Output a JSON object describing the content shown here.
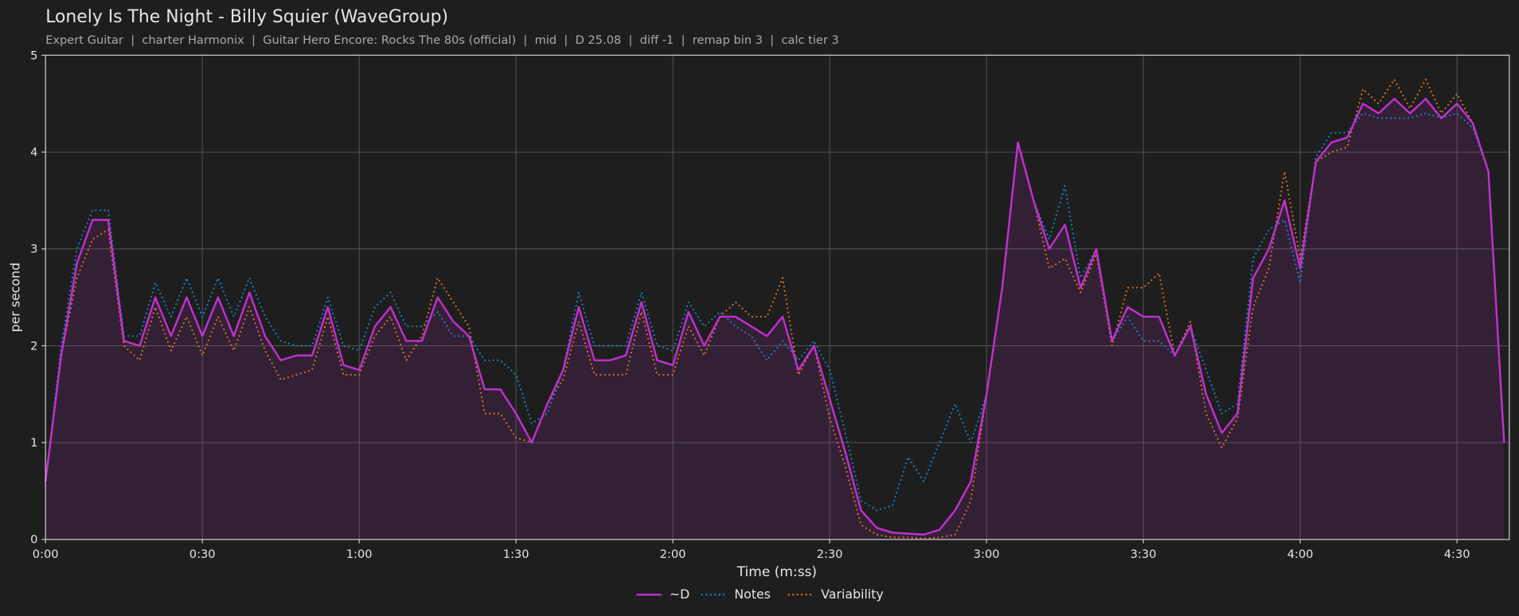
{
  "chart_data": {
    "type": "line",
    "title": "Lonely Is The Night - Billy Squier (WaveGroup)",
    "subtitle": "Expert Guitar  |  charter Harmonix  |  Guitar Hero Encore: Rocks The 80s (official)  |  mid  |  D 25.08  |  diff -1  |  remap bin 3  |  calc tier 3",
    "x_label": "Time (m:ss)",
    "y_label": "per second",
    "xlim": [
      0,
      280
    ],
    "ylim": [
      0,
      5
    ],
    "xticks": [
      {
        "value": 0,
        "label": "0:00"
      },
      {
        "value": 30,
        "label": "0:30"
      },
      {
        "value": 60,
        "label": "1:00"
      },
      {
        "value": 90,
        "label": "1:30"
      },
      {
        "value": 120,
        "label": "2:00"
      },
      {
        "value": 150,
        "label": "2:30"
      },
      {
        "value": 180,
        "label": "3:00"
      },
      {
        "value": 210,
        "label": "3:30"
      },
      {
        "value": 240,
        "label": "4:00"
      },
      {
        "value": 270,
        "label": "4:30"
      }
    ],
    "yticks": [
      0,
      1,
      2,
      3,
      4,
      5
    ],
    "grid": true,
    "legend": "bottom",
    "x": [
      0,
      3,
      6,
      9,
      12,
      15,
      18,
      21,
      24,
      27,
      30,
      33,
      36,
      39,
      42,
      45,
      48,
      51,
      54,
      57,
      60,
      63,
      66,
      69,
      72,
      75,
      78,
      81,
      84,
      87,
      90,
      93,
      96,
      99,
      102,
      105,
      108,
      111,
      114,
      117,
      120,
      123,
      126,
      129,
      132,
      135,
      138,
      141,
      144,
      147,
      150,
      153,
      156,
      159,
      162,
      165,
      168,
      171,
      174,
      177,
      180,
      183,
      186,
      189,
      192,
      195,
      198,
      201,
      204,
      207,
      210,
      213,
      216,
      219,
      222,
      225,
      228,
      231,
      234,
      237,
      240,
      243,
      246,
      249,
      252,
      255,
      258,
      261,
      264,
      267,
      270,
      273,
      276,
      279
    ],
    "series": [
      {
        "name": "~D",
        "color": "#c22fd0",
        "dash": "solid",
        "fill": true,
        "values": [
          0.6,
          1.9,
          2.85,
          3.3,
          3.3,
          2.05,
          2.0,
          2.5,
          2.1,
          2.5,
          2.1,
          2.5,
          2.1,
          2.55,
          2.1,
          1.85,
          1.9,
          1.9,
          2.4,
          1.8,
          1.75,
          2.2,
          2.4,
          2.05,
          2.05,
          2.5,
          2.25,
          2.1,
          1.55,
          1.55,
          1.3,
          1.0,
          1.4,
          1.75,
          2.4,
          1.85,
          1.85,
          1.9,
          2.45,
          1.85,
          1.8,
          2.35,
          2.0,
          2.3,
          2.3,
          2.2,
          2.1,
          2.3,
          1.75,
          2.0,
          1.45,
          0.9,
          0.3,
          0.12,
          0.07,
          0.06,
          0.05,
          0.1,
          0.3,
          0.6,
          1.5,
          2.6,
          4.1,
          3.5,
          3.0,
          3.25,
          2.6,
          3.0,
          2.05,
          2.4,
          2.3,
          2.3,
          1.9,
          2.2,
          1.5,
          1.1,
          1.3,
          2.7,
          3.0,
          3.5,
          2.8,
          3.9,
          4.1,
          4.15,
          4.5,
          4.4,
          4.55,
          4.4,
          4.55,
          4.35,
          4.5,
          4.3,
          3.8,
          1.0
        ]
      },
      {
        "name": "Notes",
        "color": "#1f86c9",
        "dash": "dotted",
        "fill": false,
        "values": [
          0.6,
          2.0,
          3.0,
          3.4,
          3.4,
          2.1,
          2.1,
          2.65,
          2.3,
          2.7,
          2.3,
          2.7,
          2.3,
          2.7,
          2.3,
          2.05,
          2.0,
          2.0,
          2.5,
          2.0,
          1.95,
          2.4,
          2.55,
          2.2,
          2.2,
          2.35,
          2.1,
          2.1,
          1.85,
          1.85,
          1.7,
          1.2,
          1.3,
          1.75,
          2.55,
          2.0,
          2.0,
          2.0,
          2.55,
          2.0,
          1.95,
          2.45,
          2.2,
          2.35,
          2.2,
          2.1,
          1.85,
          2.05,
          1.85,
          2.05,
          1.75,
          1.1,
          0.4,
          0.3,
          0.35,
          0.85,
          0.6,
          1.0,
          1.4,
          1.0,
          1.5,
          2.6,
          4.1,
          3.5,
          3.1,
          3.65,
          2.7,
          3.0,
          2.05,
          2.3,
          2.05,
          2.05,
          1.9,
          2.2,
          1.75,
          1.3,
          1.4,
          2.9,
          3.2,
          3.3,
          2.65,
          3.95,
          4.2,
          4.2,
          4.4,
          4.35,
          4.35,
          4.35,
          4.4,
          4.35,
          4.4,
          4.25,
          3.8,
          1.0
        ]
      },
      {
        "name": "Variability",
        "color": "#e0792a",
        "dash": "dotted",
        "fill": false,
        "values": [
          0.6,
          1.9,
          2.7,
          3.1,
          3.2,
          2.0,
          1.85,
          2.4,
          1.95,
          2.3,
          1.9,
          2.3,
          1.95,
          2.4,
          1.95,
          1.65,
          1.7,
          1.75,
          2.3,
          1.7,
          1.7,
          2.1,
          2.3,
          1.85,
          2.1,
          2.7,
          2.45,
          2.2,
          1.3,
          1.3,
          1.05,
          1.0,
          1.4,
          1.65,
          2.25,
          1.7,
          1.7,
          1.7,
          2.35,
          1.7,
          1.7,
          2.2,
          1.9,
          2.3,
          2.45,
          2.3,
          2.3,
          2.7,
          1.7,
          2.0,
          1.25,
          0.75,
          0.15,
          0.05,
          0.02,
          0.02,
          0.01,
          0.02,
          0.05,
          0.4,
          1.5,
          2.6,
          4.1,
          3.5,
          2.8,
          2.9,
          2.55,
          2.95,
          2.0,
          2.6,
          2.6,
          2.75,
          1.9,
          2.25,
          1.3,
          0.95,
          1.25,
          2.4,
          2.8,
          3.8,
          2.9,
          3.9,
          4.0,
          4.05,
          4.65,
          4.5,
          4.75,
          4.45,
          4.75,
          4.4,
          4.6,
          4.3,
          3.8,
          1.0
        ]
      }
    ]
  }
}
